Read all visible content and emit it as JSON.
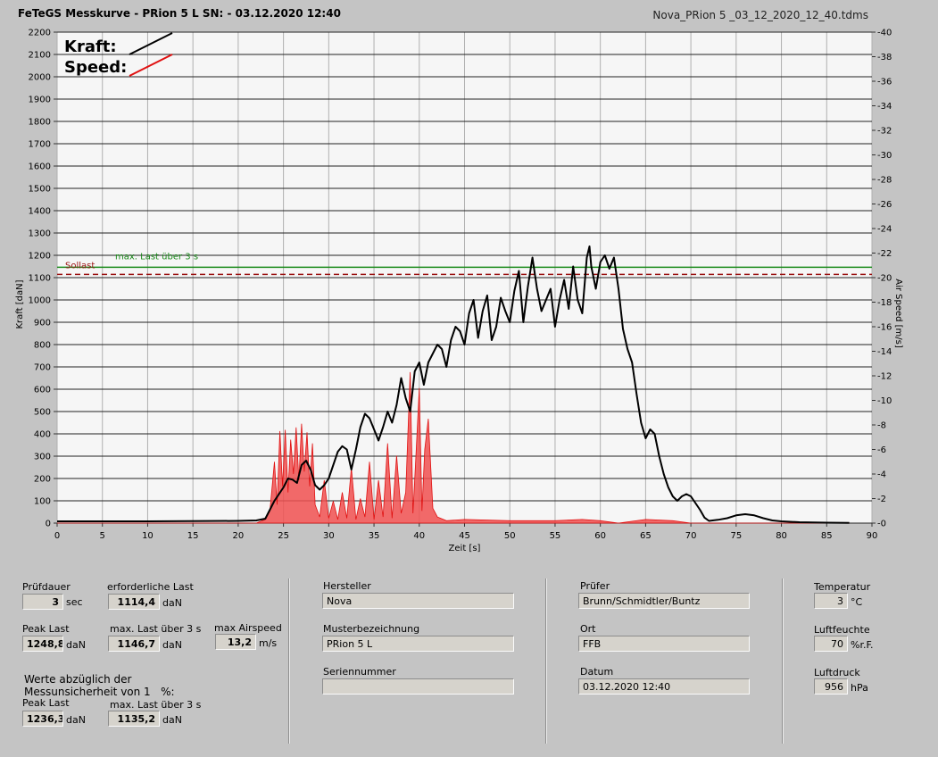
{
  "header": {
    "title": "FeTeGS Messkurve - PRion 5 L  SN:  - 03.12.2020 12:40",
    "filename": "Nova_PRion 5 _03_12_2020_12_40.tdms"
  },
  "legend": {
    "kraft": "Kraft:",
    "speed": "Speed:"
  },
  "colors": {
    "force": "#000000",
    "speed": "#e01010",
    "speed_fill": "#f05050",
    "maxlast": "#1a8a1a",
    "sollast": "#9a1010"
  },
  "chart_data": {
    "type": "line",
    "xlabel": "Zeit [s]",
    "ylabel_left": "Kraft [daN]",
    "ylabel_right": "Air Speed [m/s]",
    "xlim": [
      0,
      90
    ],
    "ylim_left": [
      0,
      2200
    ],
    "ylim_right": [
      0,
      40
    ],
    "x_ticks": [
      0,
      5,
      10,
      15,
      20,
      25,
      30,
      35,
      40,
      45,
      50,
      55,
      60,
      65,
      70,
      75,
      80,
      85,
      90
    ],
    "y_ticks_left": [
      0,
      100,
      200,
      300,
      400,
      500,
      600,
      700,
      800,
      900,
      1000,
      1100,
      1200,
      1300,
      1400,
      1500,
      1600,
      1700,
      1800,
      1900,
      2000,
      2100,
      2200
    ],
    "y_ticks_right": [
      0,
      2,
      4,
      6,
      8,
      10,
      12,
      14,
      16,
      18,
      20,
      22,
      24,
      26,
      28,
      30,
      32,
      34,
      36,
      38,
      40
    ],
    "grid": true,
    "reference_lines": [
      {
        "label": "max. Last über  3 s",
        "value": 1146.7,
        "style": "solid"
      },
      {
        "label": "Sollast",
        "value": 1114.4,
        "style": "dashed"
      }
    ],
    "series": [
      {
        "name": "Kraft",
        "axis": "left",
        "points": [
          [
            0,
            8
          ],
          [
            10,
            8
          ],
          [
            20,
            10
          ],
          [
            22,
            12
          ],
          [
            23,
            20
          ],
          [
            23.5,
            60
          ],
          [
            24,
            100
          ],
          [
            25,
            160
          ],
          [
            25.5,
            200
          ],
          [
            26,
            195
          ],
          [
            26.5,
            180
          ],
          [
            27,
            260
          ],
          [
            27.5,
            280
          ],
          [
            28,
            240
          ],
          [
            28.5,
            170
          ],
          [
            29,
            150
          ],
          [
            29.5,
            170
          ],
          [
            30,
            200
          ],
          [
            30.5,
            260
          ],
          [
            31,
            320
          ],
          [
            31.5,
            345
          ],
          [
            32,
            330
          ],
          [
            32.5,
            240
          ],
          [
            33,
            330
          ],
          [
            33.5,
            430
          ],
          [
            34,
            490
          ],
          [
            34.5,
            470
          ],
          [
            35,
            420
          ],
          [
            35.5,
            370
          ],
          [
            36,
            430
          ],
          [
            36.5,
            500
          ],
          [
            37,
            450
          ],
          [
            37.5,
            530
          ],
          [
            38,
            650
          ],
          [
            38.5,
            560
          ],
          [
            39,
            500
          ],
          [
            39.5,
            680
          ],
          [
            40,
            720
          ],
          [
            40.5,
            620
          ],
          [
            41,
            720
          ],
          [
            41.5,
            760
          ],
          [
            42,
            800
          ],
          [
            42.5,
            780
          ],
          [
            43,
            700
          ],
          [
            43.5,
            820
          ],
          [
            44,
            880
          ],
          [
            44.5,
            860
          ],
          [
            45,
            800
          ],
          [
            45.5,
            940
          ],
          [
            46,
            1000
          ],
          [
            46.5,
            830
          ],
          [
            47,
            950
          ],
          [
            47.5,
            1020
          ],
          [
            48,
            820
          ],
          [
            48.5,
            880
          ],
          [
            49,
            1010
          ],
          [
            49.5,
            950
          ],
          [
            50,
            900
          ],
          [
            50.5,
            1040
          ],
          [
            51,
            1130
          ],
          [
            51.5,
            900
          ],
          [
            52,
            1060
          ],
          [
            52.5,
            1190
          ],
          [
            53,
            1050
          ],
          [
            53.5,
            950
          ],
          [
            54,
            1000
          ],
          [
            54.5,
            1050
          ],
          [
            55,
            880
          ],
          [
            55.5,
            1000
          ],
          [
            56,
            1090
          ],
          [
            56.5,
            960
          ],
          [
            57,
            1150
          ],
          [
            57.5,
            1000
          ],
          [
            58,
            940
          ],
          [
            58.5,
            1190
          ],
          [
            58.8,
            1240
          ],
          [
            59,
            1150
          ],
          [
            59.5,
            1050
          ],
          [
            60,
            1170
          ],
          [
            60.5,
            1200
          ],
          [
            61,
            1140
          ],
          [
            61.5,
            1190
          ],
          [
            62,
            1050
          ],
          [
            62.5,
            870
          ],
          [
            63,
            780
          ],
          [
            63.5,
            720
          ],
          [
            64,
            580
          ],
          [
            64.5,
            450
          ],
          [
            65,
            380
          ],
          [
            65.5,
            420
          ],
          [
            66,
            400
          ],
          [
            66.5,
            300
          ],
          [
            67,
            220
          ],
          [
            67.5,
            160
          ],
          [
            68,
            120
          ],
          [
            68.5,
            100
          ],
          [
            69,
            120
          ],
          [
            69.5,
            130
          ],
          [
            70,
            120
          ],
          [
            70.5,
            90
          ],
          [
            71,
            60
          ],
          [
            71.5,
            25
          ],
          [
            72,
            10
          ],
          [
            73,
            15
          ],
          [
            74,
            22
          ],
          [
            75,
            35
          ],
          [
            76,
            40
          ],
          [
            77,
            35
          ],
          [
            78,
            22
          ],
          [
            79,
            12
          ],
          [
            80,
            8
          ],
          [
            82,
            4
          ],
          [
            85,
            2
          ],
          [
            87.5,
            1
          ]
        ]
      },
      {
        "name": "Speed",
        "axis": "right",
        "points": [
          [
            0,
            0
          ],
          [
            22,
            0
          ],
          [
            23,
            0.3
          ],
          [
            23.5,
            1.0
          ],
          [
            24,
            5.0
          ],
          [
            24.3,
            1.5
          ],
          [
            24.6,
            7.5
          ],
          [
            24.9,
            3.0
          ],
          [
            25.2,
            7.6
          ],
          [
            25.5,
            2.5
          ],
          [
            25.8,
            6.8
          ],
          [
            26.1,
            4.0
          ],
          [
            26.4,
            7.8
          ],
          [
            26.7,
            3.5
          ],
          [
            27,
            8.1
          ],
          [
            27.3,
            4.2
          ],
          [
            27.6,
            7.4
          ],
          [
            27.9,
            3.0
          ],
          [
            28.2,
            6.5
          ],
          [
            28.5,
            1.5
          ],
          [
            29,
            0.5
          ],
          [
            29.5,
            3.5
          ],
          [
            30,
            0.4
          ],
          [
            30.5,
            1.8
          ],
          [
            31,
            0.3
          ],
          [
            31.5,
            2.5
          ],
          [
            32,
            0.4
          ],
          [
            32.5,
            4.5
          ],
          [
            33,
            0.3
          ],
          [
            33.5,
            2.0
          ],
          [
            34,
            0.5
          ],
          [
            34.5,
            5.0
          ],
          [
            35,
            0.3
          ],
          [
            35.5,
            3.5
          ],
          [
            36,
            0.5
          ],
          [
            36.5,
            6.5
          ],
          [
            37,
            0.4
          ],
          [
            37.5,
            5.5
          ],
          [
            38,
            0.8
          ],
          [
            38.5,
            2.5
          ],
          [
            39,
            12.3
          ],
          [
            39.3,
            0.8
          ],
          [
            39.6,
            5.0
          ],
          [
            40,
            11.0
          ],
          [
            40.3,
            1.0
          ],
          [
            40.6,
            6.0
          ],
          [
            41,
            8.5
          ],
          [
            41.5,
            1.2
          ],
          [
            42,
            0.5
          ],
          [
            43,
            0.2
          ],
          [
            45,
            0.3
          ],
          [
            50,
            0.2
          ],
          [
            55,
            0.2
          ],
          [
            58,
            0.3
          ],
          [
            60,
            0.2
          ],
          [
            62,
            0
          ],
          [
            65,
            0.3
          ],
          [
            68,
            0.2
          ],
          [
            70,
            0
          ],
          [
            75,
            0
          ],
          [
            87.5,
            0
          ]
        ]
      }
    ]
  },
  "panel": {
    "pruefdauer": {
      "label": "Prüfdauer",
      "value": "3",
      "unit": "sec"
    },
    "erforderliche_last": {
      "label": "erforderliche Last",
      "value": "1114,4",
      "unit": "daN"
    },
    "peak_last": {
      "label": "Peak Last",
      "value": "1248,8",
      "unit": "daN"
    },
    "max_last": {
      "label": "max. Last über  3 s",
      "value": "1146,7",
      "unit": "daN"
    },
    "max_airspeed": {
      "label": "max Airspeed",
      "value": "13,2",
      "unit": "m/s"
    },
    "werte_note": "Werte abzüglich der\nMessunsicherheit von 1   %:",
    "peak_last_2": {
      "label": "Peak Last",
      "value": "1236,3",
      "unit": "daN"
    },
    "max_last_2": {
      "label": "max. Last über  3 s",
      "value": "1135,2",
      "unit": "daN"
    },
    "hersteller": {
      "label": "Hersteller",
      "value": "Nova"
    },
    "musterbezeichnung": {
      "label": "Musterbezeichnung",
      "value": "PRion 5 L"
    },
    "seriennummer": {
      "label": "Seriennummer",
      "value": ""
    },
    "pruefer": {
      "label": "Prüfer",
      "value": "Brunn/Schmidtler/Buntz"
    },
    "ort": {
      "label": "Ort",
      "value": "FFB"
    },
    "datum": {
      "label": "Datum",
      "value": "03.12.2020 12:40"
    },
    "temperatur": {
      "label": "Temperatur",
      "value": "3",
      "unit": "°C"
    },
    "luftfeuchte": {
      "label": "Luftfeuchte",
      "value": "70",
      "unit": "%r.F."
    },
    "luftdruck": {
      "label": "Luftdruck",
      "value": "956",
      "unit": "hPa"
    }
  }
}
